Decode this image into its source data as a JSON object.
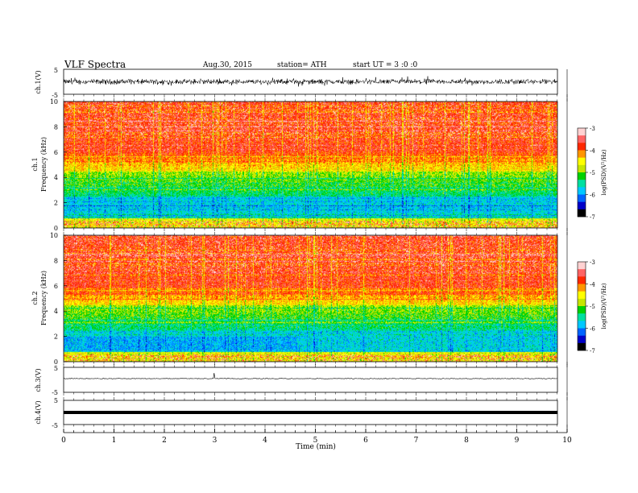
{
  "header": {
    "title": "VLF  Spectra",
    "date": "Aug.30, 2015",
    "station": "station= ATH",
    "start": "start  UT  =   3  :0  :0"
  },
  "colors": {
    "waveform": "#000000",
    "colormap": [
      "#000000",
      "#0000c8",
      "#0064ff",
      "#00c8ff",
      "#00e0a0",
      "#00d200",
      "#c8e600",
      "#ffff00",
      "#ff9600",
      "#ff2800",
      "#ff6464",
      "#ffd2d2"
    ]
  },
  "chart_data": [
    {
      "type": "line",
      "panel": "ch1-waveform",
      "ylabel": "ch.1(V)",
      "ylim": [
        -5,
        5
      ],
      "yticks": [
        "5",
        "-5"
      ],
      "description_level": "noisy waveform, amplitude about ±1.5 V"
    },
    {
      "type": "heatmap",
      "panel": "ch1-spectrogram",
      "ylabel": "ch.1\nFrequency  (kHz)",
      "ylim": [
        0,
        10
      ],
      "yticks": [
        "0",
        "2",
        "4",
        "6",
        "8",
        "10"
      ],
      "colorbar": {
        "label": "log(PSD)(V²/Hz)",
        "range": [
          -7,
          -3
        ],
        "ticks": [
          "-3",
          "-4",
          "-5",
          "-6",
          "-7"
        ]
      }
    },
    {
      "type": "heatmap",
      "panel": "ch2-spectrogram",
      "ylabel": "ch.2\nFrequency  (kHz)",
      "ylim": [
        0,
        10
      ],
      "yticks": [
        "0",
        "2",
        "4",
        "6",
        "8",
        "10"
      ],
      "colorbar": {
        "label": "log(PSD)(V²/Hz)",
        "range": [
          -7,
          -3
        ],
        "ticks": [
          "-3",
          "-4",
          "-5",
          "-6",
          "-7"
        ]
      }
    },
    {
      "type": "line",
      "panel": "ch3-waveform",
      "ylabel": "ch.3(V)",
      "ylim": [
        -5,
        5
      ],
      "yticks": [
        "5",
        "-5"
      ]
    },
    {
      "type": "line",
      "panel": "ch4-waveform",
      "ylabel": "ch.4(V)",
      "ylim": [
        -5,
        5
      ],
      "yticks": [
        "5",
        "-5"
      ]
    },
    {
      "type": "axis",
      "xlabel": "Time  (min)",
      "xlim": [
        0,
        10
      ],
      "xticks": [
        "0",
        "1",
        "2",
        "3",
        "4",
        "5",
        "6",
        "7",
        "8",
        "9",
        "10"
      ],
      "data_end_min": 9.8
    }
  ]
}
